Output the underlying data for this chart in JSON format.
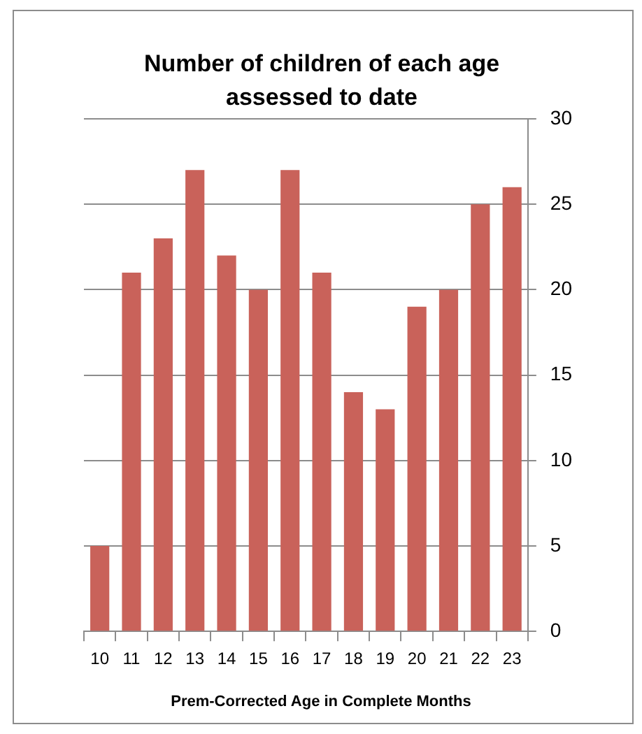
{
  "chart_data": {
    "type": "bar",
    "title": "Number of children of each age assessed to date",
    "xlabel": "Prem-Corrected Age in Complete Months",
    "categories": [
      "10",
      "11",
      "12",
      "13",
      "14",
      "15",
      "16",
      "17",
      "18",
      "19",
      "20",
      "21",
      "22",
      "23"
    ],
    "values": [
      5,
      21,
      23,
      27,
      22,
      20,
      27,
      21,
      14,
      13,
      19,
      20,
      25,
      26
    ],
    "color": "#c9625a",
    "ylim": [
      0,
      30
    ],
    "yticks": [
      0,
      5,
      10,
      15,
      20,
      25,
      30
    ],
    "grid": "y",
    "legend": false
  }
}
